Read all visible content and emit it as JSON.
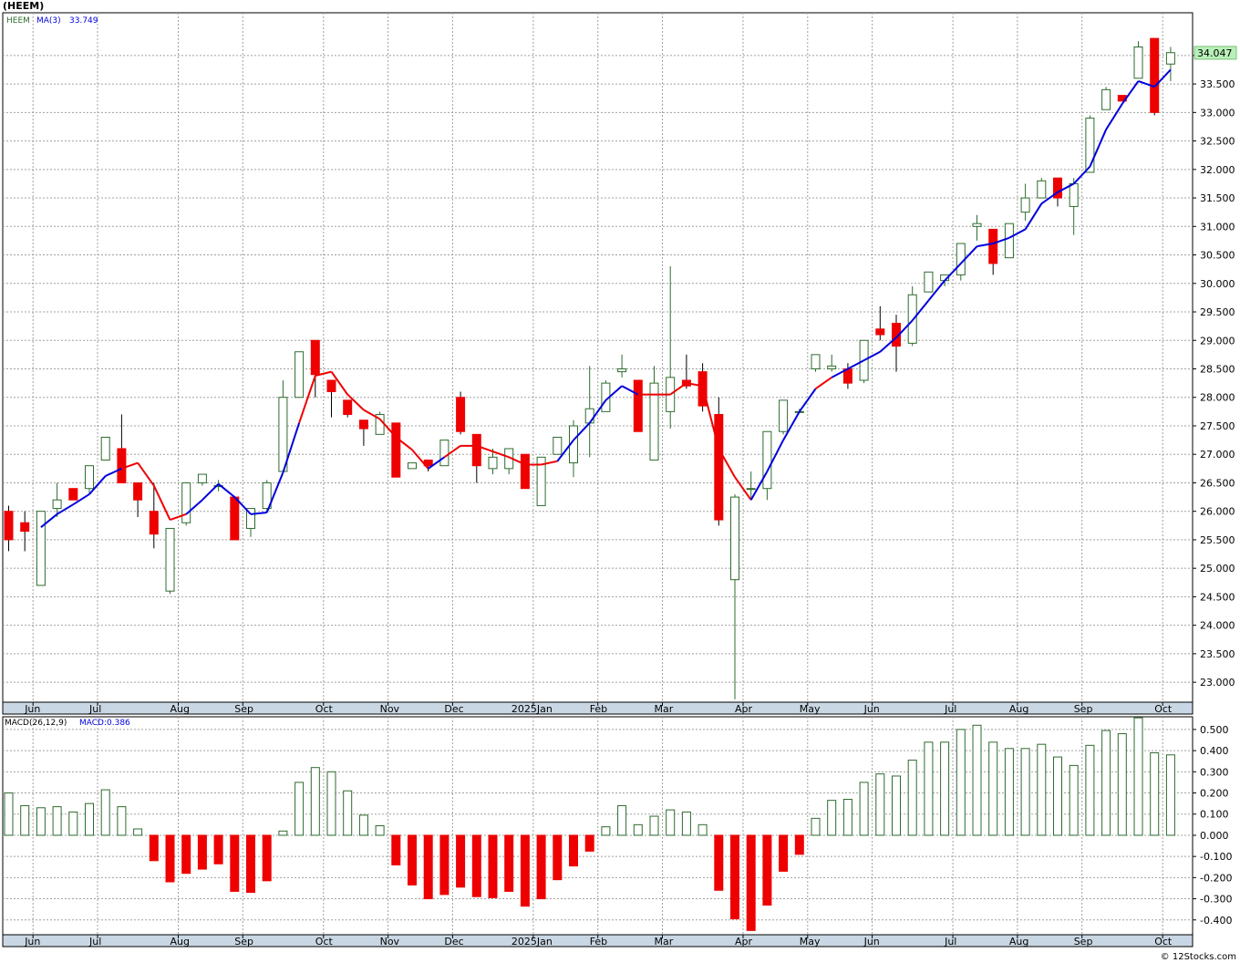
{
  "title": "(HEEM)",
  "footer": "© 12Stocks.com",
  "colors": {
    "up_stroke": "#2e6b2e",
    "down_fill": "#ee0000",
    "ma_up": "#0000dd",
    "ma_down": "#ee0000",
    "grid": "#a0a0a0",
    "axis_band": "#c9d7e4",
    "last_price_bg": "#b9f0b9"
  },
  "chart_data": [
    {
      "type": "candlestick",
      "legend": {
        "symbol": "HEEM",
        "ma_label": "MA(3)",
        "ma_value": "33.749"
      },
      "last_price_label": "34.047",
      "ylim": [
        22.65,
        34.75
      ],
      "y_ticks": [
        "23.000",
        "23.500",
        "24.000",
        "24.500",
        "25.000",
        "25.500",
        "26.000",
        "26.500",
        "27.000",
        "27.500",
        "28.000",
        "28.500",
        "29.000",
        "29.500",
        "30.000",
        "30.500",
        "31.000",
        "31.500",
        "32.000",
        "32.500",
        "33.000",
        "33.500",
        "34.000"
      ],
      "x_month_labels": [
        {
          "label": "Jun",
          "index": 1
        },
        {
          "label": "Jul",
          "index": 5
        },
        {
          "label": "Aug",
          "index": 10
        },
        {
          "label": "Sep",
          "index": 14
        },
        {
          "label": "Oct",
          "index": 19
        },
        {
          "label": "Nov",
          "index": 23
        },
        {
          "label": "Dec",
          "index": 27
        },
        {
          "label": "2025Jan",
          "index": 32
        },
        {
          "label": "Feb",
          "index": 36
        },
        {
          "label": "Mar",
          "index": 40
        },
        {
          "label": "Apr",
          "index": 45
        },
        {
          "label": "May",
          "index": 49
        },
        {
          "label": "Jun",
          "index": 53
        },
        {
          "label": "Jul",
          "index": 58
        },
        {
          "label": "Aug",
          "index": 62
        },
        {
          "label": "Sep",
          "index": 66
        },
        {
          "label": "Oct",
          "index": 71
        }
      ],
      "candles": [
        [
          26.0,
          26.1,
          25.3,
          25.5
        ],
        [
          25.8,
          26.0,
          25.3,
          25.65
        ],
        [
          24.7,
          26.0,
          24.7,
          26.0
        ],
        [
          26.05,
          26.5,
          25.9,
          26.2
        ],
        [
          26.4,
          26.4,
          26.2,
          26.2
        ],
        [
          26.4,
          26.8,
          26.3,
          26.8
        ],
        [
          26.9,
          27.3,
          26.9,
          27.3
        ],
        [
          27.1,
          27.7,
          26.5,
          26.5
        ],
        [
          26.5,
          26.5,
          25.9,
          26.2
        ],
        [
          26.0,
          26.5,
          25.35,
          25.6
        ],
        [
          24.6,
          25.7,
          24.55,
          25.7
        ],
        [
          25.8,
          26.5,
          25.75,
          26.5
        ],
        [
          26.5,
          26.65,
          26.45,
          26.65
        ],
        [
          26.45,
          26.55,
          26.35,
          26.45
        ],
        [
          26.25,
          26.25,
          25.5,
          25.5
        ],
        [
          25.7,
          26.05,
          25.55,
          26.05
        ],
        [
          26.05,
          26.55,
          26.0,
          26.5
        ],
        [
          26.7,
          28.3,
          26.7,
          28.0
        ],
        [
          28.0,
          28.8,
          28.0,
          28.8
        ],
        [
          29.0,
          29.0,
          28.0,
          28.4
        ],
        [
          28.3,
          28.3,
          27.65,
          28.1
        ],
        [
          27.95,
          27.95,
          27.65,
          27.7
        ],
        [
          27.6,
          27.6,
          27.15,
          27.45
        ],
        [
          27.35,
          27.75,
          27.35,
          27.7
        ],
        [
          27.55,
          27.55,
          26.6,
          26.6
        ],
        [
          26.75,
          26.85,
          26.75,
          26.85
        ],
        [
          26.9,
          26.9,
          26.7,
          26.8
        ],
        [
          26.8,
          27.25,
          26.8,
          27.25
        ],
        [
          28.0,
          28.1,
          27.35,
          27.4
        ],
        [
          27.35,
          27.35,
          26.5,
          26.8
        ],
        [
          26.75,
          27.1,
          26.65,
          26.95
        ],
        [
          26.75,
          27.1,
          26.65,
          27.1
        ],
        [
          27.0,
          27.0,
          26.4,
          26.4
        ],
        [
          26.1,
          26.95,
          26.1,
          26.95
        ],
        [
          27.0,
          27.3,
          27.0,
          27.3
        ],
        [
          26.85,
          27.6,
          26.6,
          27.5
        ],
        [
          27.55,
          28.55,
          26.95,
          27.8
        ],
        [
          27.75,
          28.3,
          27.75,
          28.25
        ],
        [
          28.45,
          28.75,
          28.35,
          28.5
        ],
        [
          28.3,
          28.3,
          27.4,
          27.4
        ],
        [
          26.9,
          28.55,
          26.9,
          28.25
        ],
        [
          27.75,
          30.3,
          27.45,
          28.35
        ],
        [
          28.3,
          28.75,
          28.15,
          28.2
        ],
        [
          28.45,
          28.6,
          27.75,
          27.85
        ],
        [
          27.7,
          28.0,
          25.75,
          25.85
        ],
        [
          24.8,
          26.3,
          22.7,
          26.25
        ],
        [
          26.4,
          26.7,
          26.2,
          26.4
        ],
        [
          26.4,
          27.4,
          26.2,
          27.4
        ],
        [
          27.4,
          27.95,
          27.35,
          27.95
        ],
        [
          27.75,
          27.8,
          27.75,
          27.75
        ],
        [
          28.5,
          28.75,
          28.45,
          28.75
        ],
        [
          28.5,
          28.75,
          28.45,
          28.55
        ],
        [
          28.5,
          28.6,
          28.15,
          28.25
        ],
        [
          28.3,
          29.0,
          28.25,
          29.0
        ],
        [
          29.2,
          29.6,
          29.0,
          29.1
        ],
        [
          29.3,
          29.45,
          28.45,
          28.9
        ],
        [
          28.95,
          29.95,
          28.9,
          29.8
        ],
        [
          29.85,
          30.2,
          29.85,
          30.2
        ],
        [
          30.05,
          30.15,
          29.95,
          30.15
        ],
        [
          30.15,
          30.7,
          30.05,
          30.7
        ],
        [
          31.0,
          31.2,
          30.75,
          31.05
        ],
        [
          30.95,
          30.95,
          30.15,
          30.35
        ],
        [
          30.45,
          31.05,
          30.45,
          31.05
        ],
        [
          31.25,
          31.75,
          31.1,
          31.5
        ],
        [
          31.5,
          31.85,
          31.5,
          31.8
        ],
        [
          31.85,
          31.85,
          31.35,
          31.5
        ],
        [
          31.35,
          31.85,
          30.85,
          31.75
        ],
        [
          31.95,
          32.95,
          31.95,
          32.9
        ],
        [
          33.05,
          33.45,
          33.05,
          33.4
        ],
        [
          33.3,
          33.3,
          33.2,
          33.2
        ],
        [
          33.6,
          34.25,
          33.6,
          34.15
        ],
        [
          34.3,
          34.3,
          32.95,
          33.0
        ],
        [
          33.85,
          34.15,
          33.55,
          34.05
        ]
      ],
      "ma3": [
        null,
        null,
        25.72,
        25.95,
        26.12,
        26.3,
        26.62,
        26.75,
        26.85,
        26.45,
        25.85,
        25.95,
        26.2,
        26.48,
        26.25,
        25.95,
        25.98,
        26.68,
        27.55,
        28.38,
        28.45,
        28.05,
        27.78,
        27.62,
        27.3,
        27.08,
        26.75,
        26.95,
        27.15,
        27.15,
        27.05,
        26.95,
        26.82,
        26.82,
        26.88,
        27.25,
        27.55,
        27.95,
        28.2,
        28.05,
        28.05,
        28.05,
        28.25,
        28.2,
        27.1,
        26.6,
        26.2,
        26.7,
        27.25,
        27.75,
        28.15,
        28.35,
        28.5,
        28.65,
        28.8,
        29.05,
        29.35,
        29.7,
        30.05,
        30.35,
        30.65,
        30.7,
        30.8,
        30.95,
        31.4,
        31.6,
        31.75,
        32.05,
        32.7,
        33.15,
        33.55,
        33.45,
        33.75
      ],
      "ma_down_segments": [
        [
          7,
          10
        ],
        [
          18,
          25
        ],
        [
          27,
          33
        ],
        [
          39,
          40
        ],
        [
          41,
          45
        ],
        [
          50,
          50
        ]
      ]
    },
    {
      "type": "bar",
      "legend": {
        "name": "MACD(26,12,9)",
        "value_label": "MACD:0.386"
      },
      "ylim": [
        -0.47,
        0.56
      ],
      "y_ticks": [
        "-0.400",
        "-0.300",
        "-0.200",
        "-0.100",
        "0.000",
        "0.100",
        "0.200",
        "0.300",
        "0.400",
        "0.500"
      ],
      "x_month_labels": [
        {
          "label": "Jun",
          "index": 1
        },
        {
          "label": "Jul",
          "index": 5
        },
        {
          "label": "Aug",
          "index": 10
        },
        {
          "label": "Sep",
          "index": 14
        },
        {
          "label": "Oct",
          "index": 19
        },
        {
          "label": "Nov",
          "index": 23
        },
        {
          "label": "Dec",
          "index": 27
        },
        {
          "label": "2025Jan",
          "index": 32
        },
        {
          "label": "Feb",
          "index": 36
        },
        {
          "label": "Mar",
          "index": 40
        },
        {
          "label": "Apr",
          "index": 45
        },
        {
          "label": "May",
          "index": 49
        },
        {
          "label": "Jun",
          "index": 53
        },
        {
          "label": "Jul",
          "index": 58
        },
        {
          "label": "Aug",
          "index": 62
        },
        {
          "label": "Sep",
          "index": 66
        },
        {
          "label": "Oct",
          "index": 71
        }
      ],
      "values": [
        0.2,
        0.14,
        0.13,
        0.135,
        0.11,
        0.15,
        0.215,
        0.135,
        0.03,
        -0.12,
        -0.22,
        -0.18,
        -0.16,
        -0.135,
        -0.265,
        -0.27,
        -0.215,
        0.02,
        0.25,
        0.32,
        0.3,
        0.21,
        0.095,
        0.045,
        -0.14,
        -0.235,
        -0.3,
        -0.28,
        -0.245,
        -0.29,
        -0.295,
        -0.265,
        -0.335,
        -0.3,
        -0.21,
        -0.145,
        -0.075,
        0.04,
        0.14,
        0.05,
        0.09,
        0.12,
        0.11,
        0.05,
        -0.26,
        -0.395,
        -0.45,
        -0.33,
        -0.17,
        -0.09,
        0.08,
        0.165,
        0.17,
        0.25,
        0.29,
        0.28,
        0.355,
        0.44,
        0.44,
        0.5,
        0.52,
        0.44,
        0.41,
        0.41,
        0.43,
        0.37,
        0.33,
        0.425,
        0.495,
        0.48,
        0.555,
        0.39,
        0.38
      ]
    }
  ]
}
